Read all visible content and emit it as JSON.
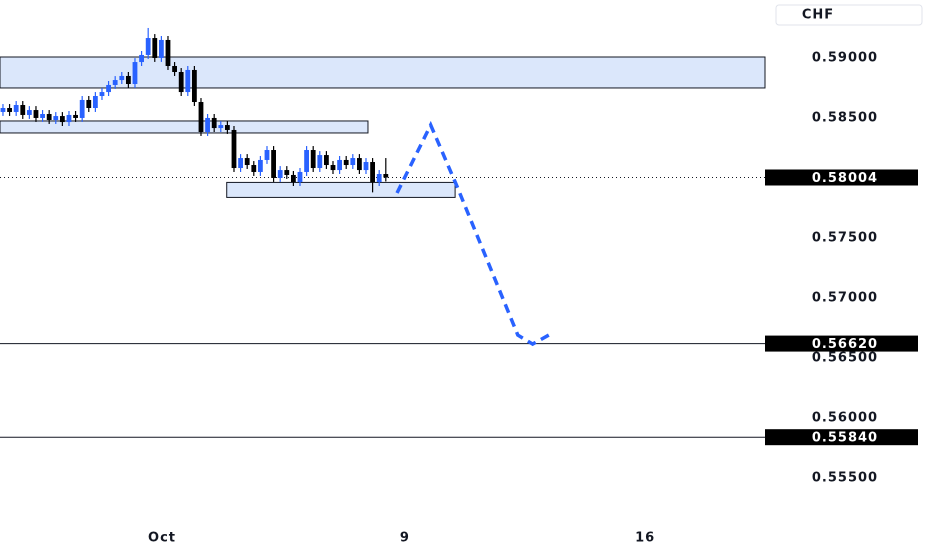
{
  "chart_data": {
    "type": "candlestick",
    "y_axis_label": "CHF",
    "up_color": "#2962ff",
    "down_color": "#000000",
    "open": [
      0.5855,
      0.58583,
      0.5855,
      0.58608,
      0.58525,
      0.58566,
      0.585,
      0.58533,
      0.58483,
      0.58516,
      0.58466,
      0.58525,
      0.585,
      0.5865,
      0.58583,
      0.58683,
      0.58716,
      0.58775,
      0.58816,
      0.5885,
      0.58783,
      0.58966,
      0.59025,
      0.59166,
      0.59,
      0.5915,
      0.58933,
      0.58883,
      0.58716,
      0.589,
      0.58633,
      0.58383,
      0.585,
      0.58416,
      0.58441,
      0.584,
      0.58083,
      0.58166,
      0.58108,
      0.5805,
      0.5815,
      0.58233,
      0.58,
      0.58066,
      0.58025,
      0.57966,
      0.5805,
      0.58233,
      0.58083,
      0.58191,
      0.58108,
      0.58066,
      0.5815,
      0.58108,
      0.58166,
      0.58066,
      0.58133,
      0.57966,
      0.58033
    ],
    "high": [
      0.58616,
      0.58616,
      0.58641,
      0.58641,
      0.58599,
      0.58599,
      0.58566,
      0.58566,
      0.58549,
      0.58549,
      0.58558,
      0.58558,
      0.58683,
      0.58683,
      0.58716,
      0.58749,
      0.58808,
      0.58849,
      0.58883,
      0.58883,
      0.58999,
      0.59058,
      0.5925,
      0.59199,
      0.59183,
      0.59183,
      0.58966,
      0.58916,
      0.58933,
      0.58933,
      0.58666,
      0.58533,
      0.58533,
      0.58474,
      0.58474,
      0.58433,
      0.58199,
      0.58199,
      0.58141,
      0.58183,
      0.58266,
      0.58266,
      0.58099,
      0.58099,
      0.58058,
      0.58083,
      0.58266,
      0.58266,
      0.58224,
      0.58224,
      0.58141,
      0.58183,
      0.58183,
      0.58199,
      0.58199,
      0.58166,
      0.58166,
      0.58066,
      0.58166
    ],
    "low": [
      0.58517,
      0.58517,
      0.58517,
      0.58492,
      0.58492,
      0.58467,
      0.58467,
      0.5845,
      0.5845,
      0.58433,
      0.58433,
      0.58467,
      0.58467,
      0.5855,
      0.5855,
      0.5865,
      0.58683,
      0.58742,
      0.58783,
      0.5875,
      0.5875,
      0.58933,
      0.58992,
      0.58967,
      0.58967,
      0.589,
      0.5885,
      0.58683,
      0.58683,
      0.586,
      0.5835,
      0.5835,
      0.58383,
      0.58383,
      0.58367,
      0.5805,
      0.5805,
      0.58075,
      0.58017,
      0.58017,
      0.58117,
      0.57967,
      0.57967,
      0.57992,
      0.57933,
      0.57933,
      0.58017,
      0.5805,
      0.5805,
      0.58075,
      0.58033,
      0.58033,
      0.58075,
      0.58075,
      0.58033,
      0.58033,
      0.5788,
      0.57933,
      0.57971
    ],
    "close": [
      0.58583,
      0.5855,
      0.58608,
      0.58525,
      0.58566,
      0.585,
      0.58533,
      0.58483,
      0.58516,
      0.58466,
      0.58525,
      0.585,
      0.5865,
      0.58583,
      0.58683,
      0.58716,
      0.58775,
      0.58816,
      0.5885,
      0.58783,
      0.58966,
      0.59025,
      0.59166,
      0.59,
      0.5915,
      0.58933,
      0.58883,
      0.58716,
      0.589,
      0.58633,
      0.58383,
      0.585,
      0.58416,
      0.58441,
      0.584,
      0.58083,
      0.58166,
      0.58108,
      0.5805,
      0.5815,
      0.58233,
      0.58,
      0.58066,
      0.58025,
      0.57966,
      0.5805,
      0.58233,
      0.58083,
      0.58191,
      0.58108,
      0.58066,
      0.5815,
      0.58108,
      0.58166,
      0.58066,
      0.58133,
      0.57966,
      0.58033,
      0.58004
    ],
    "xlim": [
      -0.45,
      115.45
    ],
    "ylim": [
      0.5515,
      0.59483
    ],
    "xticks": [
      {
        "value": 24.1,
        "label": "Oct"
      },
      {
        "value": 60.9,
        "label": "9"
      },
      {
        "value": 97.3,
        "label": "16"
      }
    ],
    "yticks": [
      {
        "value": 0.59,
        "label": "0.59000"
      },
      {
        "value": 0.585,
        "label": "0.58500"
      },
      {
        "value": 0.575,
        "label": "0.57500"
      },
      {
        "value": 0.57,
        "label": "0.57000"
      },
      {
        "value": 0.565,
        "label": "0.56500"
      },
      {
        "value": 0.56,
        "label": "0.56000"
      },
      {
        "value": 0.555,
        "label": "0.55500"
      }
    ],
    "last_price": {
      "value": 0.58004,
      "label": "0.58004"
    },
    "levels": [
      {
        "value": 0.5662,
        "label": "0.56620"
      },
      {
        "value": 0.5584,
        "label": "0.55840"
      }
    ],
    "zones": [
      {
        "x": [
          -0.45,
          115.45
        ],
        "y": [
          0.5875,
          0.59008
        ]
      },
      {
        "x": [
          -0.45,
          55.3
        ],
        "y": [
          0.58375,
          0.58475
        ]
      },
      {
        "x": [
          33.9,
          68.5
        ],
        "y": [
          0.57838,
          0.57963
        ]
      }
    ],
    "projection": {
      "x": [
        59.7,
        64.8,
        68.7,
        78,
        80.25,
        83.25
      ],
      "y": [
        0.57875,
        0.58441,
        0.57942,
        0.56691,
        0.56616,
        0.56708
      ]
    }
  }
}
